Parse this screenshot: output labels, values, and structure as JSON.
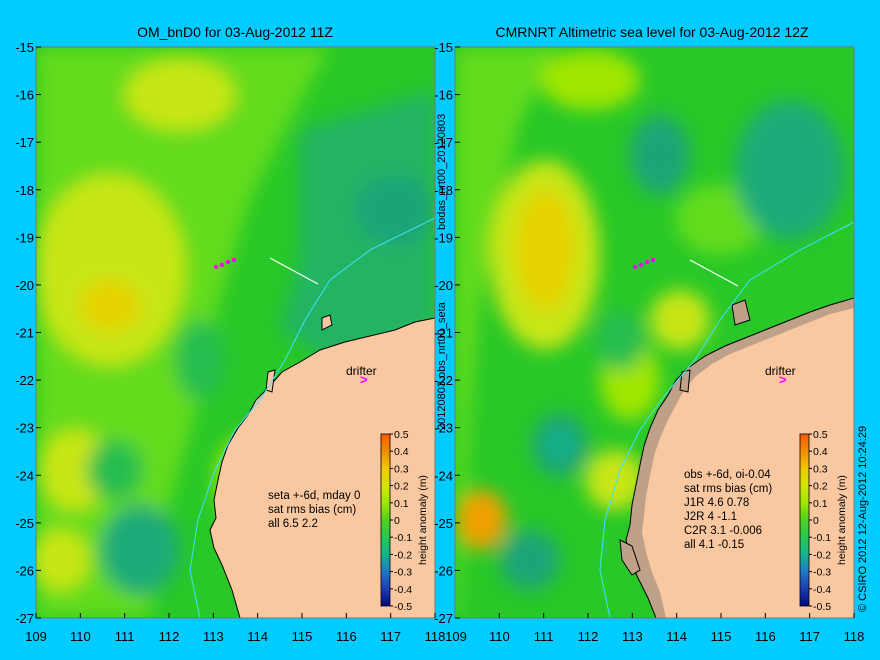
{
  "colors": {
    "page_bg": "#00ccff",
    "land": "#f9c8a0",
    "land_topo": "#bfa088",
    "sea_green": "#28c828",
    "sea_light": "#64dc1e",
    "sea_teal": "#22b48c",
    "sea_yellow": "#c8e614",
    "sea_orange": "#f0a000",
    "coast_line": "#000000",
    "contour_cyan": "#40e0ff",
    "drifter_marker": "#ff00ff",
    "track_white": "#ffffff"
  },
  "left_panel": {
    "title": "OM_bnD0 for 03-Aug-2012 11Z",
    "y_ticks": [
      "-15",
      "-16",
      "-17",
      "-18",
      "-19",
      "-20",
      "-21",
      "-22",
      "-23",
      "-24",
      "-25",
      "-26",
      "-27"
    ],
    "x_ticks": [
      "109",
      "110",
      "111",
      "112",
      "113",
      "114",
      "115",
      "116",
      "117",
      "118"
    ],
    "drifter_label": "drifter",
    "drifter_icon": "chevron-right-marker",
    "stats": [
      "seta +-6d, mday 0",
      "sat rms bias (cm)",
      "all 6.5 2.2"
    ]
  },
  "right_panel": {
    "title": "CMRNRT Altimetric sea level  for 03-Aug-2012 12Z",
    "y_ticks": [
      "-15",
      "-16",
      "-17",
      "-18",
      "-19",
      "-20",
      "-21",
      "-22",
      "-23",
      "-24",
      "-25",
      "-26",
      "-27"
    ],
    "x_ticks": [
      "110",
      "111",
      "112",
      "113",
      "114",
      "115",
      "116",
      "117",
      "118"
    ],
    "x_first_tick": "109",
    "drifter_label": "drifter",
    "drifter_icon": "chevron-right-marker",
    "stats": [
      "obs +-6d, oi-0.04",
      "sat rms bias (cm)",
      "J1R   4.6 0.78",
      "J2R   4 -1.1",
      "C2R   3.1 -0.006",
      "all 4.1 -0.15"
    ]
  },
  "colorbar": {
    "ticks": [
      "0.5",
      "0.4",
      "0.3",
      "0.2",
      "0.1",
      "0",
      "-0.1",
      "-0.2",
      "-0.3",
      "-0.4",
      "-0.5"
    ],
    "label": "height anomaly (m)",
    "stops": [
      "#ff5a00",
      "#f08c00",
      "#f0c800",
      "#d2e600",
      "#a0e600",
      "#50d21e",
      "#28c850",
      "#14b48c",
      "#1e78c8",
      "#1e3cb4",
      "#000a78"
    ]
  },
  "vertical_text": {
    "upper": "bodas_nrt00_20120803",
    "lower": "20120803.obs_nrt00_seta",
    "credit": "© CSIRO 2012   12-Aug-2012 10:24:29"
  }
}
